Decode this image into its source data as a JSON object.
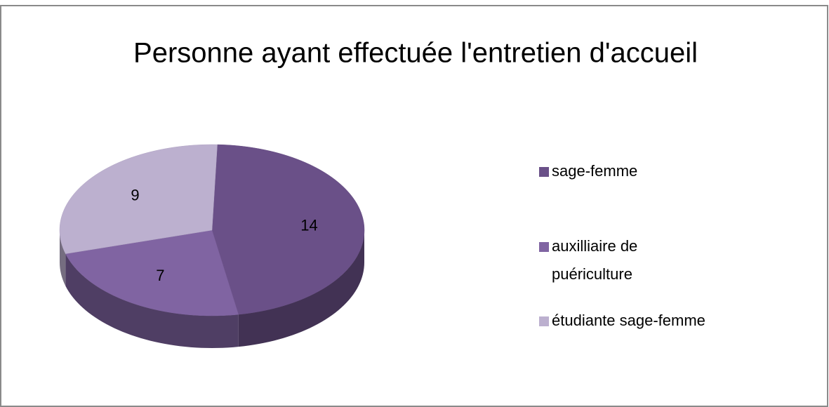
{
  "chart_data": {
    "type": "pie3d",
    "title": "Personne ayant effectuée l'entretien d'accueil",
    "categories": [
      "sage-femme",
      "auxilliaire de puériculture",
      "étudiante sage-femme"
    ],
    "values": [
      14,
      7,
      9
    ],
    "colors": [
      "#6a5088",
      "#8064a2",
      "#bcb0cf"
    ],
    "legend": "right"
  }
}
